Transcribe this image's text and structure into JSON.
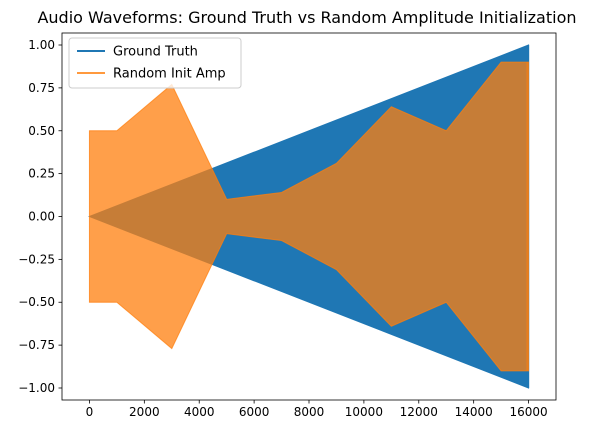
{
  "chart_data": {
    "type": "area",
    "title": "Audio Waveforms: Ground Truth vs Random Amplitude Initialization",
    "xlabel": "",
    "ylabel": "",
    "xlim": [
      -1000,
      17000
    ],
    "ylim": [
      -1.07,
      1.07
    ],
    "x_ticks": [
      0,
      2000,
      4000,
      6000,
      8000,
      10000,
      12000,
      14000,
      16000
    ],
    "y_ticks": [
      -1.0,
      -0.75,
      -0.5,
      -0.25,
      0.0,
      0.25,
      0.5,
      0.75,
      1.0
    ],
    "y_tick_labels": [
      "−1.00",
      "−0.75",
      "−0.50",
      "−0.25",
      "0.00",
      "0.25",
      "0.50",
      "0.75",
      "1.00"
    ],
    "grid": false,
    "legend_position": "upper-left",
    "series": [
      {
        "name": "Ground Truth",
        "color": "#1f77b4",
        "opacity": 1.0,
        "envelope": {
          "x": [
            0,
            16000
          ],
          "upper": [
            0.0,
            1.0
          ],
          "lower": [
            0.0,
            -1.0
          ]
        },
        "end_drop_x": 16000
      },
      {
        "name": "Random Init Amp",
        "color": "#ff7f0e",
        "opacity": 0.75,
        "envelope": {
          "x": [
            0,
            1000,
            3000,
            5000,
            7000,
            9000,
            11000,
            13000,
            15000,
            16000
          ],
          "upper": [
            0.5,
            0.5,
            0.77,
            0.1,
            0.14,
            0.31,
            0.64,
            0.5,
            0.9,
            0.9
          ],
          "lower": [
            -0.5,
            -0.5,
            -0.77,
            -0.1,
            -0.14,
            -0.31,
            -0.64,
            -0.5,
            -0.9,
            -0.9
          ]
        },
        "end_drop_x": 15950
      }
    ]
  }
}
